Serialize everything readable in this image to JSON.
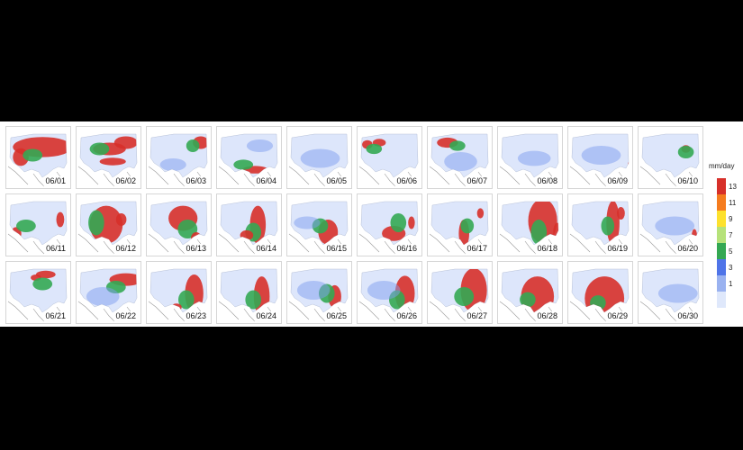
{
  "legend": {
    "units": "mm/day",
    "ticks": [
      "13",
      "11",
      "9",
      "7",
      "5",
      "3",
      "1"
    ],
    "colors": [
      "#d7302a",
      "#f57c1f",
      "#fde12d",
      "#b6e27a",
      "#34a853",
      "#4f74e8",
      "#9ab2f0",
      "#dfe8fb"
    ]
  },
  "land_color": "#dde6fb",
  "days": [
    {
      "label": "06/01",
      "blobs": [
        [
          "red",
          0.55,
          0.32,
          0.45,
          0.16
        ],
        [
          "red",
          0.22,
          0.48,
          0.12,
          0.14
        ],
        [
          "green",
          0.4,
          0.45,
          0.15,
          0.1
        ]
      ]
    },
    {
      "label": "06/02",
      "blobs": [
        [
          "red",
          0.5,
          0.35,
          0.25,
          0.1
        ],
        [
          "red",
          0.75,
          0.25,
          0.18,
          0.1
        ],
        [
          "red",
          0.55,
          0.55,
          0.2,
          0.06
        ],
        [
          "green",
          0.35,
          0.35,
          0.15,
          0.1
        ]
      ]
    },
    {
      "label": "06/03",
      "blobs": [
        [
          "red",
          0.82,
          0.25,
          0.12,
          0.1
        ],
        [
          "green",
          0.7,
          0.3,
          0.1,
          0.1
        ],
        [
          "blue",
          0.4,
          0.6,
          0.2,
          0.1
        ]
      ]
    },
    {
      "label": "06/04",
      "blobs": [
        [
          "red",
          0.58,
          0.68,
          0.2,
          0.06
        ],
        [
          "green",
          0.4,
          0.6,
          0.15,
          0.08
        ],
        [
          "blue",
          0.65,
          0.3,
          0.2,
          0.1
        ]
      ]
    },
    {
      "label": "06/05",
      "blobs": [
        [
          "blue",
          0.5,
          0.5,
          0.3,
          0.15
        ]
      ]
    },
    {
      "label": "06/06",
      "blobs": [
        [
          "red",
          0.15,
          0.28,
          0.08,
          0.07
        ],
        [
          "red",
          0.33,
          0.25,
          0.1,
          0.06
        ],
        [
          "green",
          0.25,
          0.35,
          0.12,
          0.08
        ]
      ]
    },
    {
      "label": "06/07",
      "blobs": [
        [
          "red",
          0.3,
          0.25,
          0.16,
          0.08
        ],
        [
          "green",
          0.45,
          0.3,
          0.12,
          0.08
        ],
        [
          "blue",
          0.5,
          0.55,
          0.25,
          0.15
        ]
      ]
    },
    {
      "label": "06/08",
      "blobs": [
        [
          "blue",
          0.55,
          0.5,
          0.25,
          0.12
        ],
        [
          "red",
          0.9,
          0.75,
          0.04,
          0.08
        ]
      ]
    },
    {
      "label": "06/09",
      "blobs": [
        [
          "blue",
          0.5,
          0.45,
          0.3,
          0.15
        ],
        [
          "red",
          0.93,
          0.65,
          0.03,
          0.1
        ]
      ]
    },
    {
      "label": "06/10",
      "blobs": [
        [
          "red",
          0.72,
          0.35,
          0.07,
          0.06
        ],
        [
          "green",
          0.72,
          0.4,
          0.12,
          0.1
        ]
      ]
    },
    {
      "label": "06/11",
      "blobs": [
        [
          "red",
          0.15,
          0.62,
          0.08,
          0.1
        ],
        [
          "red",
          0.82,
          0.4,
          0.06,
          0.12
        ],
        [
          "green",
          0.3,
          0.5,
          0.15,
          0.1
        ]
      ]
    },
    {
      "label": "06/12",
      "blobs": [
        [
          "red",
          0.45,
          0.48,
          0.25,
          0.3
        ],
        [
          "green",
          0.3,
          0.45,
          0.12,
          0.2
        ],
        [
          "red",
          0.68,
          0.4,
          0.08,
          0.1
        ]
      ]
    },
    {
      "label": "06/13",
      "blobs": [
        [
          "red",
          0.55,
          0.38,
          0.22,
          0.2
        ],
        [
          "green",
          0.62,
          0.55,
          0.15,
          0.15
        ],
        [
          "red",
          0.75,
          0.7,
          0.08,
          0.1
        ]
      ]
    },
    {
      "label": "06/14",
      "blobs": [
        [
          "red",
          0.62,
          0.48,
          0.12,
          0.3
        ],
        [
          "green",
          0.55,
          0.6,
          0.12,
          0.15
        ],
        [
          "red",
          0.45,
          0.65,
          0.1,
          0.08
        ]
      ]
    },
    {
      "label": "06/15",
      "blobs": [
        [
          "red",
          0.62,
          0.6,
          0.15,
          0.2
        ],
        [
          "green",
          0.5,
          0.5,
          0.12,
          0.12
        ],
        [
          "blue",
          0.3,
          0.45,
          0.2,
          0.1
        ]
      ]
    },
    {
      "label": "06/16",
      "blobs": [
        [
          "red",
          0.55,
          0.62,
          0.18,
          0.12
        ],
        [
          "green",
          0.62,
          0.45,
          0.12,
          0.15
        ],
        [
          "red",
          0.82,
          0.45,
          0.05,
          0.1
        ]
      ]
    },
    {
      "label": "06/17",
      "blobs": [
        [
          "red",
          0.55,
          0.62,
          0.08,
          0.22
        ],
        [
          "green",
          0.6,
          0.5,
          0.1,
          0.12
        ],
        [
          "red",
          0.8,
          0.3,
          0.05,
          0.08
        ]
      ]
    },
    {
      "label": "06/18",
      "blobs": [
        [
          "red",
          0.68,
          0.42,
          0.22,
          0.35
        ],
        [
          "green",
          0.62,
          0.6,
          0.12,
          0.2
        ],
        [
          "red",
          0.9,
          0.6,
          0.06,
          0.15
        ]
      ]
    },
    {
      "label": "06/19",
      "blobs": [
        [
          "red",
          0.68,
          0.45,
          0.1,
          0.35
        ],
        [
          "green",
          0.6,
          0.5,
          0.1,
          0.15
        ],
        [
          "red",
          0.8,
          0.3,
          0.06,
          0.1
        ]
      ]
    },
    {
      "label": "06/20",
      "blobs": [
        [
          "blue",
          0.55,
          0.5,
          0.3,
          0.15
        ],
        [
          "red",
          0.85,
          0.65,
          0.04,
          0.1
        ]
      ]
    },
    {
      "label": "06/21",
      "blobs": [
        [
          "red",
          0.6,
          0.2,
          0.15,
          0.06
        ],
        [
          "red",
          0.45,
          0.25,
          0.08,
          0.05
        ],
        [
          "green",
          0.55,
          0.35,
          0.15,
          0.1
        ]
      ]
    },
    {
      "label": "06/22",
      "blobs": [
        [
          "red",
          0.75,
          0.28,
          0.25,
          0.1
        ],
        [
          "green",
          0.6,
          0.4,
          0.15,
          0.1
        ],
        [
          "blue",
          0.4,
          0.55,
          0.25,
          0.15
        ]
      ]
    },
    {
      "label": "06/23",
      "blobs": [
        [
          "red",
          0.72,
          0.5,
          0.14,
          0.3
        ],
        [
          "green",
          0.6,
          0.6,
          0.12,
          0.15
        ],
        [
          "red",
          0.45,
          0.72,
          0.08,
          0.06
        ]
      ]
    },
    {
      "label": "06/24",
      "blobs": [
        [
          "red",
          0.68,
          0.55,
          0.12,
          0.32
        ],
        [
          "green",
          0.55,
          0.6,
          0.12,
          0.15
        ]
      ]
    },
    {
      "label": "06/25",
      "blobs": [
        [
          "red",
          0.72,
          0.55,
          0.1,
          0.18
        ],
        [
          "green",
          0.6,
          0.5,
          0.12,
          0.15
        ],
        [
          "blue",
          0.4,
          0.45,
          0.25,
          0.15
        ]
      ]
    },
    {
      "label": "06/26",
      "blobs": [
        [
          "red",
          0.72,
          0.5,
          0.15,
          0.28
        ],
        [
          "green",
          0.6,
          0.6,
          0.12,
          0.15
        ],
        [
          "blue",
          0.4,
          0.45,
          0.25,
          0.15
        ]
      ]
    },
    {
      "label": "06/27",
      "blobs": [
        [
          "red",
          0.7,
          0.45,
          0.2,
          0.35
        ],
        [
          "green",
          0.55,
          0.55,
          0.15,
          0.15
        ]
      ]
    },
    {
      "label": "06/28",
      "blobs": [
        [
          "red",
          0.6,
          0.55,
          0.25,
          0.32
        ],
        [
          "green",
          0.45,
          0.6,
          0.12,
          0.12
        ]
      ]
    },
    {
      "label": "06/29",
      "blobs": [
        [
          "red",
          0.55,
          0.58,
          0.3,
          0.35
        ],
        [
          "green",
          0.45,
          0.65,
          0.12,
          0.12
        ]
      ]
    },
    {
      "label": "06/30",
      "blobs": [
        [
          "red",
          0.95,
          0.55,
          0.03,
          0.3
        ],
        [
          "blue",
          0.6,
          0.5,
          0.3,
          0.15
        ]
      ]
    }
  ]
}
